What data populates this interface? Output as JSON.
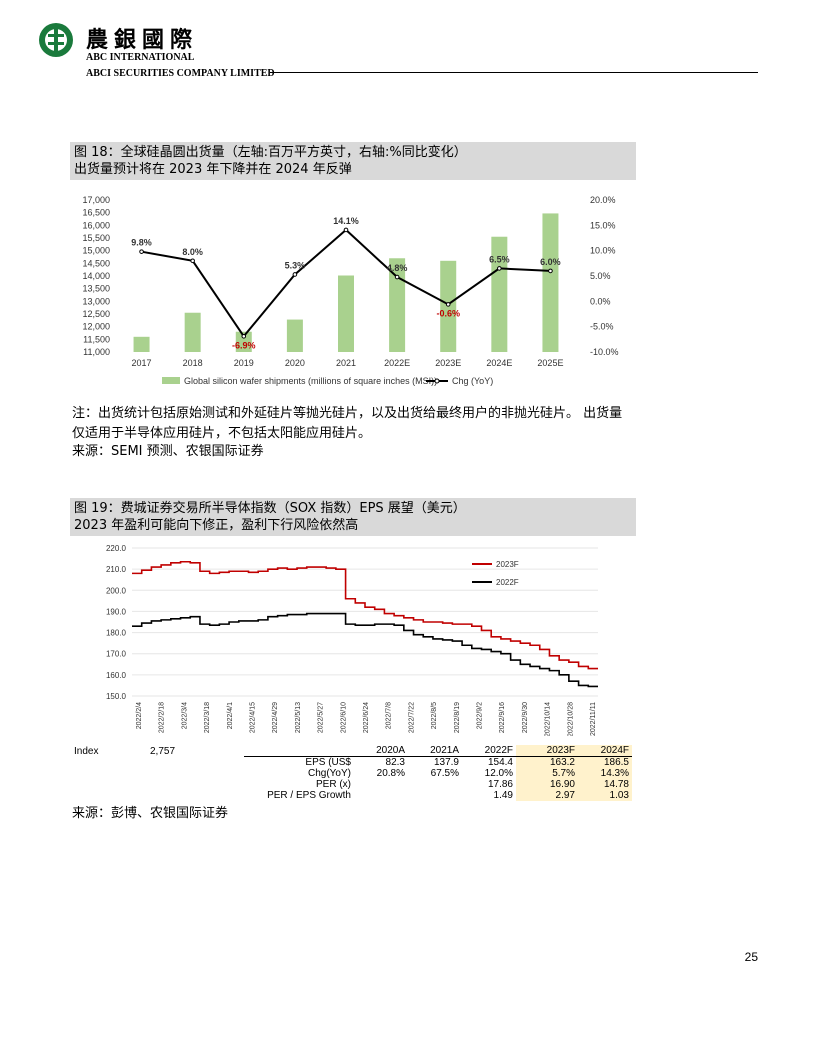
{
  "header": {
    "cn_name": "農銀國際",
    "en_line1": "ABC INTERNATIONAL",
    "en_line2": "ABCI SECURITIES COMPANY LIMITED"
  },
  "figure18": {
    "title_line1": "图 18：全球硅晶圆出货量（左轴:百万平方英寸，右轴:%同比变化）",
    "title_line2": "出货量预计将在 2023 年下降并在 2024 年反弹",
    "note": "注：出货统计包括原始测试和外延硅片等抛光硅片，以及出货给最终用户的非抛光硅片。 出货量仅适用于半导体应用硅片，不包括太阳能应用硅片。",
    "source": "来源：SEMI 预测、农银国际证券"
  },
  "figure19": {
    "title_line1": "图 19：费城证券交易所半导体指数（SOX 指数）EPS 展望（美元）",
    "title_line2": "2023 年盈利可能向下修正，盈利下行风险依然高",
    "source": "来源：彭博、农银国际证券"
  },
  "chart_data": [
    {
      "type": "bar",
      "categories": [
        "2017",
        "2018",
        "2019",
        "2020",
        "2021",
        "2022E",
        "2023E",
        "2024E",
        "2025E"
      ],
      "series": [
        {
          "name": "Global silicon wafer shipments (millions of square inches (MSI))",
          "type": "bar",
          "values": [
            11600,
            12550,
            11800,
            12280,
            14020,
            14700,
            14600,
            15550,
            16470
          ],
          "color": "#a9d18e"
        },
        {
          "name": "Chg (YoY)",
          "type": "line",
          "axis": "right",
          "values": [
            9.8,
            8.0,
            -6.9,
            5.3,
            14.1,
            4.8,
            -0.6,
            6.5,
            6.0
          ],
          "color": "#000000"
        }
      ],
      "data_labels": [
        "9.8%",
        "8.0%",
        "-6.9%",
        "5.3%",
        "14.1%",
        "4.8%",
        "-0.6%",
        "6.5%",
        "6.0%"
      ],
      "left_ticks": [
        "17,000",
        "16,500",
        "16,000",
        "15,500",
        "15,000",
        "14,500",
        "14,000",
        "13,500",
        "13,000",
        "12,500",
        "12,000",
        "11,500",
        "11,000"
      ],
      "right_ticks": [
        "20.0%",
        "15.0%",
        "10.0%",
        "5.0%",
        "0.0%",
        "-5.0%",
        "-10.0%"
      ],
      "ylim": [
        11000,
        17000
      ],
      "y2lim": [
        -10,
        20
      ],
      "legend": "bottom"
    },
    {
      "type": "line",
      "x_ticks": [
        "2022/2/4",
        "2022/2/18",
        "2022/3/4",
        "2022/3/18",
        "2022/4/1",
        "2022/4/15",
        "2022/4/29",
        "2022/5/13",
        "2022/5/27",
        "2022/6/10",
        "2022/6/24",
        "2022/7/8",
        "2022/7/22",
        "2022/8/5",
        "2022/8/19",
        "2022/9/2",
        "2022/9/16",
        "2022/9/30",
        "2022/10/14",
        "2022/10/28",
        "2022/11/11"
      ],
      "y_ticks": [
        "220.0",
        "210.0",
        "200.0",
        "190.0",
        "180.0",
        "170.0",
        "160.0",
        "150.0"
      ],
      "ylim": [
        150,
        220
      ],
      "legend": "top-right",
      "series": [
        {
          "name": "2023F",
          "color": "#c00000",
          "values": [
            208,
            209.5,
            211,
            212,
            213,
            213.5,
            213,
            209,
            208,
            208.5,
            209,
            209,
            208.5,
            209,
            210,
            210.5,
            210,
            210.5,
            211,
            211,
            210.5,
            210,
            196,
            194,
            192,
            191,
            189,
            188,
            187,
            186,
            185,
            185,
            184.5,
            184,
            184,
            183,
            181,
            178,
            177,
            176,
            175,
            174,
            172,
            169,
            167,
            166,
            164,
            163,
            163
          ]
        },
        {
          "name": "2022F",
          "color": "#000000",
          "values": [
            183,
            184.5,
            185.5,
            186,
            186.5,
            187,
            187.5,
            184,
            183.5,
            184,
            185,
            185.5,
            185.5,
            186,
            187.5,
            188,
            188.5,
            188.5,
            189,
            189,
            189,
            189,
            184,
            183.5,
            183.5,
            184,
            184,
            183.5,
            181,
            179,
            178,
            177,
            176.5,
            176,
            174,
            172.5,
            172,
            171,
            170,
            167,
            165,
            164,
            163,
            162,
            160,
            157,
            155,
            154.5,
            154.5
          ]
        }
      ]
    }
  ],
  "eps_table": {
    "index_label": "Index",
    "index_value": "2,757",
    "headers": [
      "2020A",
      "2021A",
      "2022F",
      "2023F",
      "2024F"
    ],
    "rows": [
      {
        "label": "EPS (US$",
        "values": [
          "82.3",
          "137.9",
          "154.4",
          "163.2",
          "186.5"
        ]
      },
      {
        "label": "Chg(YoY)",
        "values": [
          "20.8%",
          "67.5%",
          "12.0%",
          "5.7%",
          "14.3%"
        ]
      },
      {
        "label": "PER (x)",
        "values": [
          "",
          "",
          "17.86",
          "16.90",
          "14.78"
        ]
      },
      {
        "label": "PER / EPS Growth",
        "values": [
          "",
          "",
          "1.49",
          "2.97",
          "1.03"
        ]
      }
    ]
  },
  "page_number": "25"
}
